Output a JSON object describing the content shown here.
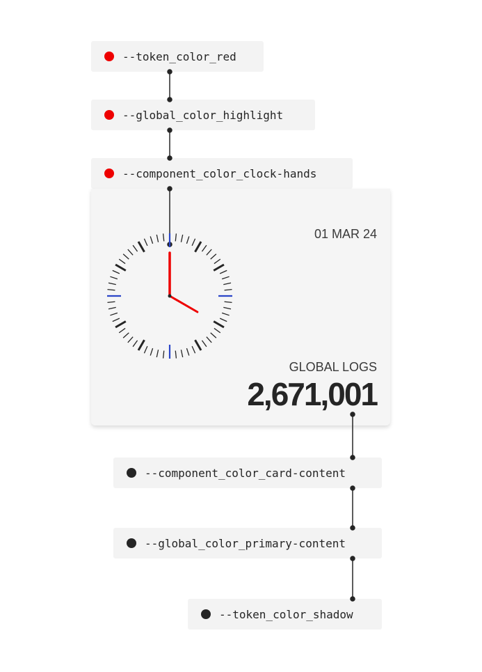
{
  "top_tokens": [
    {
      "label": "--token_color_red",
      "color": "#ee0000"
    },
    {
      "label": "--global_color_highlight",
      "color": "#ee0000"
    },
    {
      "label": "--component_color_clock-hands",
      "color": "#ee0000"
    }
  ],
  "card": {
    "date": "01 MAR 24",
    "logs_label": "GLOBAL LOGS",
    "logs_value": "2,671,001",
    "clock": {
      "hour": 4,
      "minute": 0,
      "hand_color": "#ee0000",
      "marker_color": "#2b45c8",
      "tick_color": "#252525"
    }
  },
  "bottom_tokens": [
    {
      "label": "--component_color_card-content",
      "color": "#252525"
    },
    {
      "label": "--global_color_primary-content",
      "color": "#252525"
    },
    {
      "label": "--token_color_shadow",
      "color": "#252525"
    }
  ]
}
